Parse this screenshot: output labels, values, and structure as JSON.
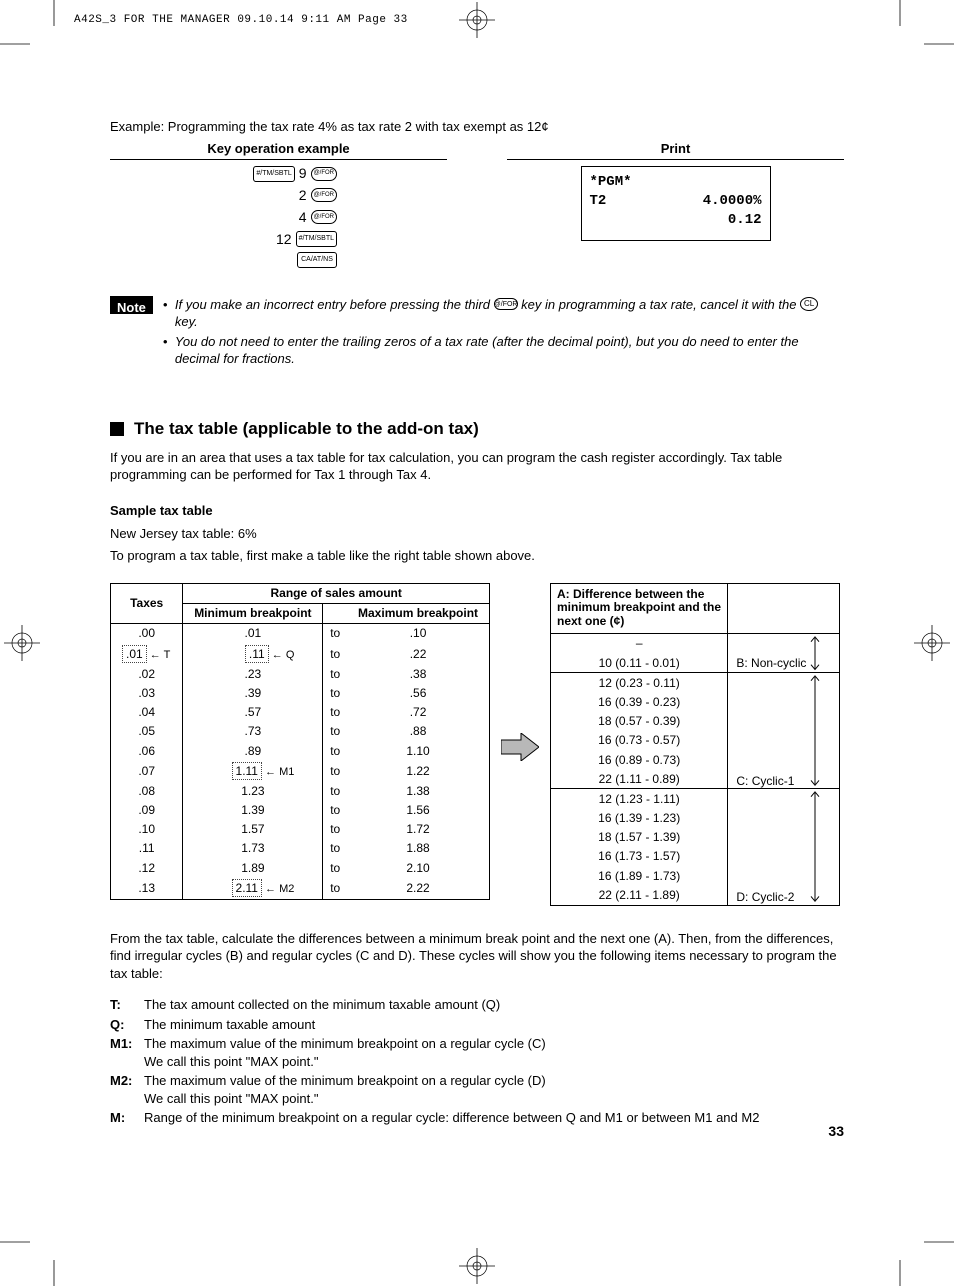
{
  "header_stamp": "A42S_3 FOR THE MANAGER  09.10.14 9:11 AM  Page 33",
  "example_line": "Example: Programming the tax rate 4% as tax rate 2 with tax exempt as 12¢",
  "columns": {
    "key_op": "Key operation example",
    "print": "Print"
  },
  "key_ops": [
    {
      "pre_key": "#/TM/SBTL",
      "num": "9",
      "post_key": "@/FOR"
    },
    {
      "pre_key": null,
      "num": "2",
      "post_key": "@/FOR"
    },
    {
      "pre_key": null,
      "num": "4",
      "post_key": "@/FOR"
    },
    {
      "pre_key": null,
      "num": "12",
      "post_key_wide": "#/TM/SBTL"
    },
    {
      "pre_key": null,
      "num": "",
      "post_key_wide": "CA/AT/NS"
    }
  ],
  "print_lines": {
    "l1": "*PGM*",
    "l2_left": "T2",
    "l2_right": "4.0000%",
    "l3_right": "0.12"
  },
  "note": {
    "label": "Note",
    "items": [
      {
        "pre": "If you make an incorrect entry before pressing the third ",
        "key_oval": "@/FOR",
        "mid": " key in programming a tax rate, cancel it with the ",
        "key_round": "CL",
        "post": " key."
      },
      {
        "pre": "You do not need to enter the trailing zeros of a tax rate (after the decimal point), but you do need to enter the decimal for fractions."
      }
    ]
  },
  "section_title": "The tax table (applicable to the add-on tax)",
  "section_p": "If you are in an area that uses a tax table for tax calculation, you can program the cash register accordingly.  Tax table programming can be performed for Tax 1 through Tax 4.",
  "sample_heading": "Sample tax table",
  "sample_desc1": "New Jersey tax table: 6%",
  "sample_desc2": "To program a tax table, first make a table like the right table shown above.",
  "left_table": {
    "range_hdr": "Range of sales amount",
    "taxes_hdr": "Taxes",
    "min_hdr": "Minimum breakpoint",
    "max_hdr": "Maximum breakpoint",
    "rows": [
      {
        "tax": ".00",
        "min": ".01",
        "to": "to",
        "max": ".10"
      },
      {
        "tax": ".01",
        "tax_tag": "T",
        "min": ".11",
        "min_tag": "Q",
        "to": "to",
        "max": ".22"
      },
      {
        "tax": ".02",
        "min": ".23",
        "to": "to",
        "max": ".38"
      },
      {
        "tax": ".03",
        "min": ".39",
        "to": "to",
        "max": ".56"
      },
      {
        "tax": ".04",
        "min": ".57",
        "to": "to",
        "max": ".72"
      },
      {
        "tax": ".05",
        "min": ".73",
        "to": "to",
        "max": ".88"
      },
      {
        "tax": ".06",
        "min": ".89",
        "to": "to",
        "max": "1.10"
      },
      {
        "tax": ".07",
        "min": "1.11",
        "min_tag": "M1",
        "to": "to",
        "max": "1.22"
      },
      {
        "tax": ".08",
        "min": "1.23",
        "to": "to",
        "max": "1.38"
      },
      {
        "tax": ".09",
        "min": "1.39",
        "to": "to",
        "max": "1.56"
      },
      {
        "tax": ".10",
        "min": "1.57",
        "to": "to",
        "max": "1.72"
      },
      {
        "tax": ".11",
        "min": "1.73",
        "to": "to",
        "max": "1.88"
      },
      {
        "tax": ".12",
        "min": "1.89",
        "to": "to",
        "max": "2.10"
      },
      {
        "tax": ".13",
        "min": "2.11",
        "min_tag": "M2",
        "to": "to",
        "max": "2.22"
      }
    ]
  },
  "right_table": {
    "diff_hdr": "A: Difference between the minimum breakpoint and the next one (¢)",
    "groups": [
      {
        "label": "B: Non-cyclic",
        "rows": [
          "–",
          "10 (0.11 - 0.01)"
        ]
      },
      {
        "label": "C: Cyclic-1",
        "rows": [
          "12 (0.23 - 0.11)",
          "16 (0.39 - 0.23)",
          "18 (0.57 - 0.39)",
          "16 (0.73 - 0.57)",
          "16 (0.89 - 0.73)",
          "22 (1.11 - 0.89)"
        ]
      },
      {
        "label": "D: Cyclic-2",
        "rows": [
          "12 (1.23 - 1.11)",
          "16 (1.39 - 1.23)",
          "18 (1.57 - 1.39)",
          "16 (1.73 - 1.57)",
          "16 (1.89 - 1.73)",
          "22 (2.11 - 1.89)"
        ]
      }
    ]
  },
  "post_para": "From the tax table, calculate the differences between a minimum break point and the next one (A). Then, from the differences, find irregular cycles (B) and regular cycles (C and D). These cycles will show you the following items necessary to program the tax table:",
  "defs": [
    {
      "t": "T:",
      "d": "The tax amount collected on the minimum taxable amount (Q)"
    },
    {
      "t": "Q:",
      "d": "The minimum taxable amount"
    },
    {
      "t": "M1:",
      "d": "The maximum value of the minimum breakpoint on a regular cycle (C)\nWe call this point \"MAX point.\""
    },
    {
      "t": "M2:",
      "d": "The maximum value of the minimum breakpoint on a regular cycle (D)\nWe call this point \"MAX point.\""
    },
    {
      "t": "M:",
      "d": "Range of the minimum breakpoint on a regular cycle: difference between Q and M1 or between M1 and M2"
    }
  ],
  "page_no": "33"
}
